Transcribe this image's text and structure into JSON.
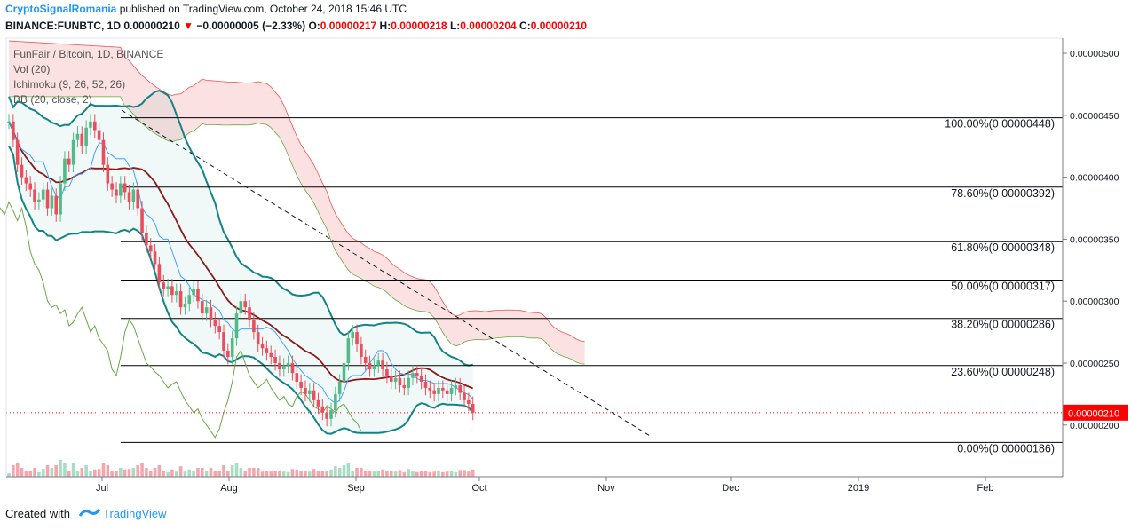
{
  "header": {
    "publisher": "CryptoSignalRomania",
    "published_text": "published on TradingView.com, October 24, 2018 15:46 UTC",
    "symbol": "BINANCE:FUNBTC, 1D",
    "price": "0.00000210",
    "arrow": "▼",
    "change": "−0.00000005 (−2.33%)",
    "o_label": "O:",
    "o_value": "0.00000217",
    "h_label": "H:",
    "h_value": "0.00000218",
    "l_label": "L:",
    "l_value": "0.00000204",
    "c_label": "C:",
    "c_value": "0.00000210"
  },
  "legend": {
    "title": "FunFair / Bitcoin, 1D, BINANCE",
    "vol": "Vol (20)",
    "ichimoku": "Ichimoku (9, 26, 52, 26)",
    "bb": "BB (20, close, 2)"
  },
  "footer": {
    "created_with": "Created with",
    "brand": "TradingView"
  },
  "colors": {
    "up": "#53b987",
    "down": "#eb4d5c",
    "bb_line": "#138484",
    "sma": "#8b1a1a",
    "tenkan": "#3da2ff",
    "chikou": "#66a843",
    "cloud_bear": "#f8c9c9",
    "cloud_bull": "#c8ecc8",
    "last_price": "#ff0000",
    "brand": "#2196f3"
  },
  "chart_data": {
    "type": "candlestick",
    "y_axis_ticks": [
      "0.00000500",
      "0.00000450",
      "0.00000400",
      "0.00000350",
      "0.00000300",
      "0.00000250",
      "0.00000200"
    ],
    "y_tick_values": [
      5e-06,
      4.5e-06,
      4e-06,
      3.5e-06,
      3e-06,
      2.5e-06,
      2e-06
    ],
    "x_axis_ticks": [
      "Jul",
      "Aug",
      "Sep",
      "Oct",
      "Nov",
      "Dec",
      "2019",
      "Feb"
    ],
    "last_price_label": "0.00000210",
    "last_price": 2.1e-06,
    "fibonacci": [
      {
        "label": "100.00%(0.00000448)",
        "value": 4.48e-06
      },
      {
        "label": "78.60%(0.00000392)",
        "value": 3.92e-06
      },
      {
        "label": "61.80%(0.00000348)",
        "value": 3.48e-06
      },
      {
        "label": "50.00%(0.00000317)",
        "value": 3.17e-06
      },
      {
        "label": "38.20%(0.00000286)",
        "value": 2.86e-06
      },
      {
        "label": "23.60%(0.00000248)",
        "value": 2.48e-06
      },
      {
        "label": "0.00%(0.00000186)",
        "value": 1.86e-06
      }
    ],
    "close_series": [
      4.45,
      4.3,
      4.1,
      4.0,
      3.95,
      3.9,
      3.8,
      3.82,
      3.9,
      3.75,
      3.85,
      3.7,
      3.95,
      4.15,
      4.1,
      4.3,
      4.35,
      4.25,
      4.4,
      4.45,
      4.38,
      4.3,
      4.1,
      3.95,
      3.9,
      3.85,
      3.95,
      3.88,
      3.8,
      3.9,
      3.75,
      3.55,
      3.45,
      3.4,
      3.3,
      3.15,
      3.1,
      3.12,
      3.05,
      3.08,
      2.95,
      2.98,
      3.05,
      3.1,
      3.0,
      2.9,
      2.95,
      2.85,
      2.8,
      2.75,
      2.6,
      2.55,
      2.7,
      2.9,
      3.0,
      2.95,
      2.85,
      2.75,
      2.65,
      2.62,
      2.58,
      2.55,
      2.5,
      2.45,
      2.48,
      2.5,
      2.42,
      2.35,
      2.3,
      2.25,
      2.28,
      2.2,
      2.15,
      2.1,
      2.05,
      2.12,
      2.25,
      2.35,
      2.5,
      2.7,
      2.75,
      2.65,
      2.55,
      2.5,
      2.45,
      2.48,
      2.52,
      2.45,
      2.4,
      2.35,
      2.38,
      2.32,
      2.3,
      2.38,
      2.42,
      2.4,
      2.35,
      2.3,
      2.28,
      2.25,
      2.3,
      2.28,
      2.25,
      2.3,
      2.32,
      2.26,
      2.2,
      2.17,
      2.1
    ]
  }
}
